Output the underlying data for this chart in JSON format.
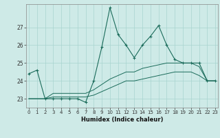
{
  "title": "",
  "xlabel": "Humidex (Indice chaleur)",
  "ylabel": "",
  "bg_color": "#ceeae7",
  "grid_color": "#a8d4d0",
  "line_color": "#1a6b5a",
  "x": [
    0,
    1,
    2,
    3,
    4,
    5,
    6,
    7,
    8,
    9,
    10,
    11,
    12,
    13,
    14,
    15,
    16,
    17,
    18,
    19,
    20,
    21,
    22,
    23
  ],
  "y_line1": [
    24.4,
    24.6,
    23.0,
    23.0,
    23.0,
    23.0,
    23.0,
    22.8,
    24.0,
    25.9,
    28.1,
    26.6,
    26.0,
    25.3,
    26.0,
    26.5,
    27.1,
    26.0,
    25.2,
    25.0,
    25.0,
    25.0,
    24.0,
    24.0
  ],
  "y_line2": [
    23.0,
    23.0,
    23.0,
    23.3,
    23.3,
    23.3,
    23.3,
    23.3,
    23.5,
    23.8,
    24.1,
    24.3,
    24.5,
    24.5,
    24.7,
    24.8,
    24.9,
    25.0,
    25.0,
    25.0,
    25.0,
    24.8,
    24.0,
    24.0
  ],
  "y_line3": [
    23.0,
    23.0,
    23.0,
    23.1,
    23.1,
    23.1,
    23.1,
    23.1,
    23.2,
    23.4,
    23.6,
    23.8,
    24.0,
    24.0,
    24.1,
    24.2,
    24.3,
    24.4,
    24.5,
    24.5,
    24.5,
    24.3,
    24.0,
    24.0
  ],
  "yticks": [
    23,
    24,
    25,
    26,
    27
  ],
  "xticks": [
    0,
    1,
    2,
    3,
    4,
    5,
    6,
    7,
    8,
    9,
    10,
    11,
    12,
    13,
    14,
    15,
    16,
    17,
    18,
    19,
    20,
    21,
    22,
    23
  ],
  "ylim": [
    22.5,
    28.3
  ],
  "xlim": [
    -0.3,
    23.3
  ]
}
